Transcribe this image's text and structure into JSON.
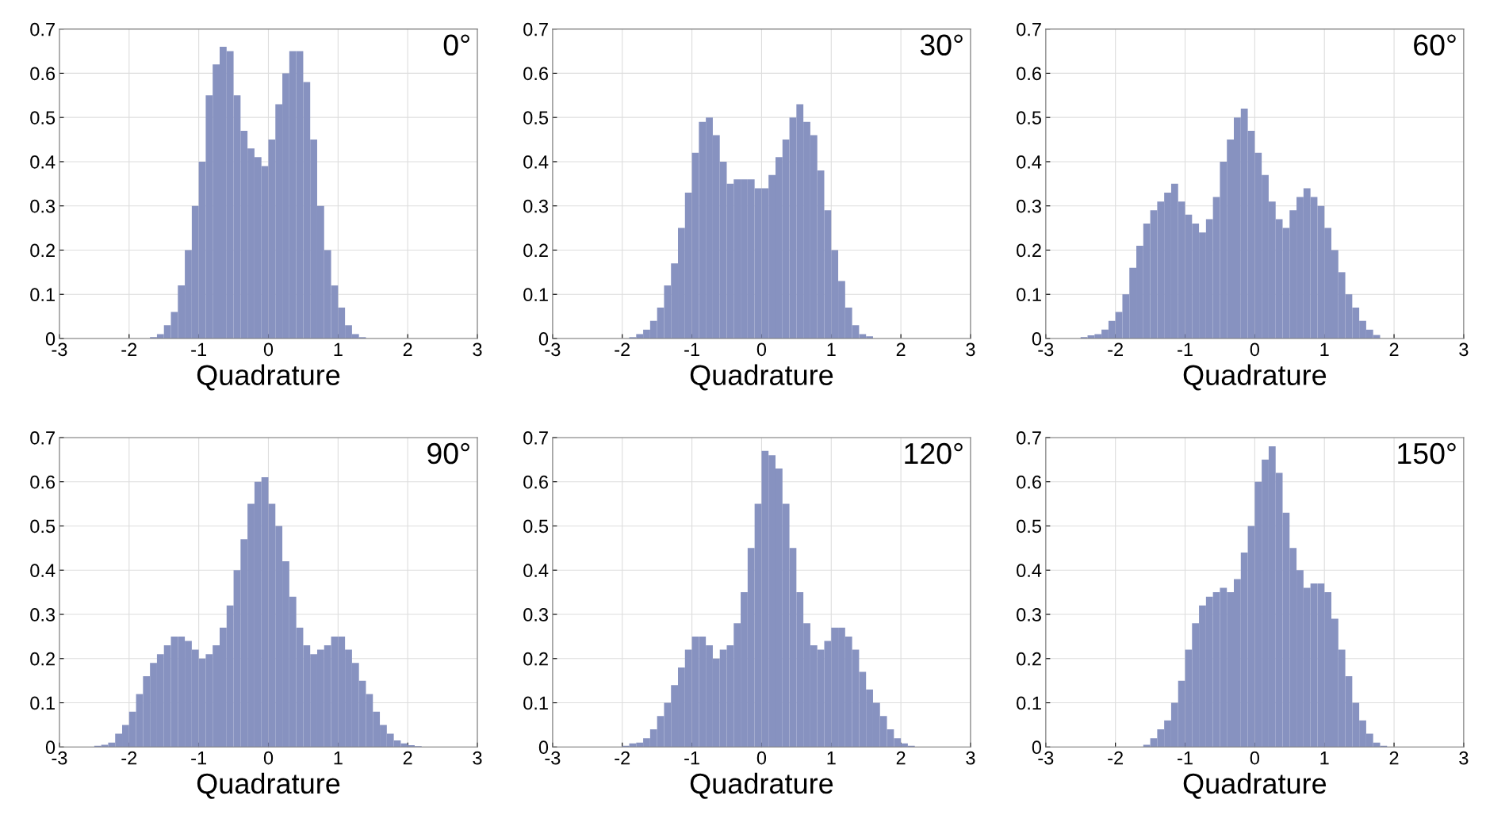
{
  "chart_data": [
    {
      "type": "histogram",
      "annotations": [
        "0°"
      ],
      "xlabel": "Quadrature",
      "color": "#8792c0",
      "grid": true,
      "xlim": [
        -3,
        3
      ],
      "ylim": [
        0,
        0.7
      ],
      "xticks": [
        -3,
        -2,
        -1,
        0,
        1,
        2,
        3
      ],
      "yticks": [
        0,
        0.1,
        0.2,
        0.3,
        0.4,
        0.5,
        0.6,
        0.7
      ],
      "bins": [
        -3,
        -2.9,
        -2.8,
        -2.7,
        -2.6,
        -2.5,
        -2.4,
        -2.3,
        -2.2,
        -2.1,
        -2,
        -1.9,
        -1.8,
        -1.7,
        -1.6,
        -1.5,
        -1.4,
        -1.3,
        -1.2,
        -1.1,
        -1,
        -0.9,
        -0.8,
        -0.7,
        -0.6,
        -0.5,
        -0.4,
        -0.3,
        -0.2,
        -0.1,
        0,
        0.1,
        0.2,
        0.3,
        0.4,
        0.5,
        0.6,
        0.7,
        0.8,
        0.9,
        1,
        1.1,
        1.2,
        1.3,
        1.4,
        1.5,
        1.6,
        1.7,
        1.8,
        1.9,
        2,
        2.1,
        2.2,
        2.3,
        2.4,
        2.5,
        2.6,
        2.7,
        2.8,
        2.9,
        3
      ],
      "values": [
        0,
        0,
        0,
        0,
        0,
        0,
        0,
        0,
        0,
        0,
        0,
        0,
        0,
        0.003,
        0.01,
        0.03,
        0.06,
        0.12,
        0.2,
        0.3,
        0.4,
        0.55,
        0.62,
        0.66,
        0.65,
        0.55,
        0.47,
        0.43,
        0.41,
        0.39,
        0.45,
        0.53,
        0.6,
        0.65,
        0.65,
        0.58,
        0.45,
        0.3,
        0.2,
        0.12,
        0.07,
        0.03,
        0.01,
        0.003,
        0,
        0,
        0,
        0,
        0,
        0,
        0,
        0,
        0,
        0,
        0,
        0,
        0,
        0,
        0,
        0
      ]
    },
    {
      "type": "histogram",
      "annotations": [
        "30°"
      ],
      "xlabel": "Quadrature",
      "color": "#8792c0",
      "grid": true,
      "xlim": [
        -3,
        3
      ],
      "ylim": [
        0,
        0.7
      ],
      "xticks": [
        -3,
        -2,
        -1,
        0,
        1,
        2,
        3
      ],
      "yticks": [
        0,
        0.1,
        0.2,
        0.3,
        0.4,
        0.5,
        0.6,
        0.7
      ],
      "bins": [
        -3,
        -2.9,
        -2.8,
        -2.7,
        -2.6,
        -2.5,
        -2.4,
        -2.3,
        -2.2,
        -2.1,
        -2,
        -1.9,
        -1.8,
        -1.7,
        -1.6,
        -1.5,
        -1.4,
        -1.3,
        -1.2,
        -1.1,
        -1,
        -0.9,
        -0.8,
        -0.7,
        -0.6,
        -0.5,
        -0.4,
        -0.3,
        -0.2,
        -0.1,
        0,
        0.1,
        0.2,
        0.3,
        0.4,
        0.5,
        0.6,
        0.7,
        0.8,
        0.9,
        1,
        1.1,
        1.2,
        1.3,
        1.4,
        1.5,
        1.6,
        1.7,
        1.8,
        1.9,
        2,
        2.1,
        2.2,
        2.3,
        2.4,
        2.5,
        2.6,
        2.7,
        2.8,
        2.9,
        3
      ],
      "values": [
        0,
        0,
        0,
        0,
        0,
        0,
        0,
        0,
        0,
        0,
        0,
        0.003,
        0.01,
        0.02,
        0.04,
        0.07,
        0.12,
        0.17,
        0.25,
        0.33,
        0.42,
        0.49,
        0.5,
        0.46,
        0.4,
        0.35,
        0.36,
        0.36,
        0.36,
        0.34,
        0.34,
        0.37,
        0.41,
        0.45,
        0.5,
        0.53,
        0.49,
        0.46,
        0.38,
        0.29,
        0.2,
        0.13,
        0.07,
        0.03,
        0.01,
        0.005,
        0,
        0,
        0,
        0,
        0,
        0,
        0,
        0,
        0,
        0,
        0,
        0,
        0,
        0
      ]
    },
    {
      "type": "histogram",
      "annotations": [
        "60°"
      ],
      "xlabel": "Quadrature",
      "color": "#8792c0",
      "grid": true,
      "xlim": [
        -3,
        3
      ],
      "ylim": [
        0,
        0.7
      ],
      "xticks": [
        -3,
        -2,
        -1,
        0,
        1,
        2,
        3
      ],
      "yticks": [
        0,
        0.1,
        0.2,
        0.3,
        0.4,
        0.5,
        0.6,
        0.7
      ],
      "bins": [
        -3,
        -2.9,
        -2.8,
        -2.7,
        -2.6,
        -2.5,
        -2.4,
        -2.3,
        -2.2,
        -2.1,
        -2,
        -1.9,
        -1.8,
        -1.7,
        -1.6,
        -1.5,
        -1.4,
        -1.3,
        -1.2,
        -1.1,
        -1,
        -0.9,
        -0.8,
        -0.7,
        -0.6,
        -0.5,
        -0.4,
        -0.3,
        -0.2,
        -0.1,
        0,
        0.1,
        0.2,
        0.3,
        0.4,
        0.5,
        0.6,
        0.7,
        0.8,
        0.9,
        1,
        1.1,
        1.2,
        1.3,
        1.4,
        1.5,
        1.6,
        1.7,
        1.8,
        1.9,
        2,
        2.1,
        2.2,
        2.3,
        2.4,
        2.5,
        2.6,
        2.7,
        2.8,
        2.9,
        3
      ],
      "values": [
        0,
        0,
        0,
        0,
        0,
        0.003,
        0.007,
        0.01,
        0.02,
        0.04,
        0.06,
        0.1,
        0.16,
        0.21,
        0.26,
        0.29,
        0.31,
        0.33,
        0.35,
        0.31,
        0.28,
        0.26,
        0.24,
        0.27,
        0.32,
        0.4,
        0.45,
        0.5,
        0.52,
        0.47,
        0.42,
        0.37,
        0.31,
        0.27,
        0.25,
        0.29,
        0.32,
        0.34,
        0.32,
        0.3,
        0.25,
        0.2,
        0.15,
        0.1,
        0.07,
        0.04,
        0.02,
        0.008,
        0,
        0,
        0,
        0,
        0,
        0,
        0,
        0,
        0,
        0,
        0,
        0
      ]
    },
    {
      "type": "histogram",
      "annotations": [
        "90°"
      ],
      "xlabel": "Quadrature",
      "color": "#8792c0",
      "grid": true,
      "xlim": [
        -3,
        3
      ],
      "ylim": [
        0,
        0.7
      ],
      "xticks": [
        -3,
        -2,
        -1,
        0,
        1,
        2,
        3
      ],
      "yticks": [
        0,
        0.1,
        0.2,
        0.3,
        0.4,
        0.5,
        0.6,
        0.7
      ],
      "bins": [
        -3,
        -2.9,
        -2.8,
        -2.7,
        -2.6,
        -2.5,
        -2.4,
        -2.3,
        -2.2,
        -2.1,
        -2,
        -1.9,
        -1.8,
        -1.7,
        -1.6,
        -1.5,
        -1.4,
        -1.3,
        -1.2,
        -1.1,
        -1,
        -0.9,
        -0.8,
        -0.7,
        -0.6,
        -0.5,
        -0.4,
        -0.3,
        -0.2,
        -0.1,
        0,
        0.1,
        0.2,
        0.3,
        0.4,
        0.5,
        0.6,
        0.7,
        0.8,
        0.9,
        1,
        1.1,
        1.2,
        1.3,
        1.4,
        1.5,
        1.6,
        1.7,
        1.8,
        1.9,
        2,
        2.1,
        2.2,
        2.3,
        2.4,
        2.5,
        2.6,
        2.7,
        2.8,
        2.9,
        3
      ],
      "values": [
        0,
        0,
        0,
        0,
        0,
        0.003,
        0.005,
        0.01,
        0.03,
        0.05,
        0.08,
        0.12,
        0.16,
        0.19,
        0.21,
        0.23,
        0.25,
        0.25,
        0.24,
        0.22,
        0.2,
        0.21,
        0.23,
        0.27,
        0.32,
        0.4,
        0.47,
        0.55,
        0.6,
        0.61,
        0.55,
        0.5,
        0.42,
        0.34,
        0.27,
        0.23,
        0.21,
        0.22,
        0.23,
        0.25,
        0.25,
        0.22,
        0.19,
        0.15,
        0.12,
        0.08,
        0.05,
        0.03,
        0.015,
        0.008,
        0.004,
        0.002,
        0,
        0,
        0,
        0,
        0,
        0,
        0,
        0
      ]
    },
    {
      "type": "histogram",
      "annotations": [
        "120°"
      ],
      "xlabel": "Quadrature",
      "color": "#8792c0",
      "grid": true,
      "xlim": [
        -3,
        3
      ],
      "ylim": [
        0,
        0.7
      ],
      "xticks": [
        -3,
        -2,
        -1,
        0,
        1,
        2,
        3
      ],
      "yticks": [
        0,
        0.1,
        0.2,
        0.3,
        0.4,
        0.5,
        0.6,
        0.7
      ],
      "bins": [
        -3,
        -2.9,
        -2.8,
        -2.7,
        -2.6,
        -2.5,
        -2.4,
        -2.3,
        -2.2,
        -2.1,
        -2,
        -1.9,
        -1.8,
        -1.7,
        -1.6,
        -1.5,
        -1.4,
        -1.3,
        -1.2,
        -1.1,
        -1,
        -0.9,
        -0.8,
        -0.7,
        -0.6,
        -0.5,
        -0.4,
        -0.3,
        -0.2,
        -0.1,
        0,
        0.1,
        0.2,
        0.3,
        0.4,
        0.5,
        0.6,
        0.7,
        0.8,
        0.9,
        1,
        1.1,
        1.2,
        1.3,
        1.4,
        1.5,
        1.6,
        1.7,
        1.8,
        1.9,
        2,
        2.1,
        2.2,
        2.3,
        2.4,
        2.5,
        2.6,
        2.7,
        2.8,
        2.9,
        3
      ],
      "values": [
        0,
        0,
        0,
        0,
        0,
        0,
        0,
        0,
        0,
        0,
        0.003,
        0.008,
        0.01,
        0.02,
        0.04,
        0.07,
        0.1,
        0.14,
        0.18,
        0.22,
        0.25,
        0.25,
        0.23,
        0.2,
        0.22,
        0.23,
        0.28,
        0.35,
        0.45,
        0.55,
        0.67,
        0.66,
        0.63,
        0.55,
        0.45,
        0.35,
        0.28,
        0.23,
        0.22,
        0.24,
        0.27,
        0.27,
        0.25,
        0.22,
        0.17,
        0.13,
        0.1,
        0.07,
        0.04,
        0.02,
        0.008,
        0.003,
        0,
        0,
        0,
        0,
        0,
        0,
        0,
        0
      ]
    },
    {
      "type": "histogram",
      "annotations": [
        "150°"
      ],
      "xlabel": "Quadrature",
      "color": "#8792c0",
      "grid": true,
      "xlim": [
        -3,
        3
      ],
      "ylim": [
        0,
        0.7
      ],
      "xticks": [
        -3,
        -2,
        -1,
        0,
        1,
        2,
        3
      ],
      "yticks": [
        0,
        0.1,
        0.2,
        0.3,
        0.4,
        0.5,
        0.6,
        0.7
      ],
      "bins": [
        -3,
        -2.9,
        -2.8,
        -2.7,
        -2.6,
        -2.5,
        -2.4,
        -2.3,
        -2.2,
        -2.1,
        -2,
        -1.9,
        -1.8,
        -1.7,
        -1.6,
        -1.5,
        -1.4,
        -1.3,
        -1.2,
        -1.1,
        -1,
        -0.9,
        -0.8,
        -0.7,
        -0.6,
        -0.5,
        -0.4,
        -0.3,
        -0.2,
        -0.1,
        0,
        0.1,
        0.2,
        0.3,
        0.4,
        0.5,
        0.6,
        0.7,
        0.8,
        0.9,
        1,
        1.1,
        1.2,
        1.3,
        1.4,
        1.5,
        1.6,
        1.7,
        1.8,
        1.9,
        2,
        2.1,
        2.2,
        2.3,
        2.4,
        2.5,
        2.6,
        2.7,
        2.8,
        2.9,
        3
      ],
      "values": [
        0,
        0,
        0,
        0,
        0,
        0,
        0,
        0,
        0,
        0,
        0,
        0,
        0,
        0,
        0.005,
        0.02,
        0.04,
        0.06,
        0.1,
        0.15,
        0.22,
        0.28,
        0.32,
        0.34,
        0.35,
        0.36,
        0.35,
        0.38,
        0.44,
        0.5,
        0.6,
        0.65,
        0.68,
        0.62,
        0.53,
        0.45,
        0.4,
        0.36,
        0.37,
        0.37,
        0.35,
        0.29,
        0.22,
        0.16,
        0.1,
        0.06,
        0.03,
        0.01,
        0.003,
        0,
        0,
        0,
        0,
        0,
        0,
        0,
        0,
        0,
        0,
        0
      ]
    }
  ]
}
